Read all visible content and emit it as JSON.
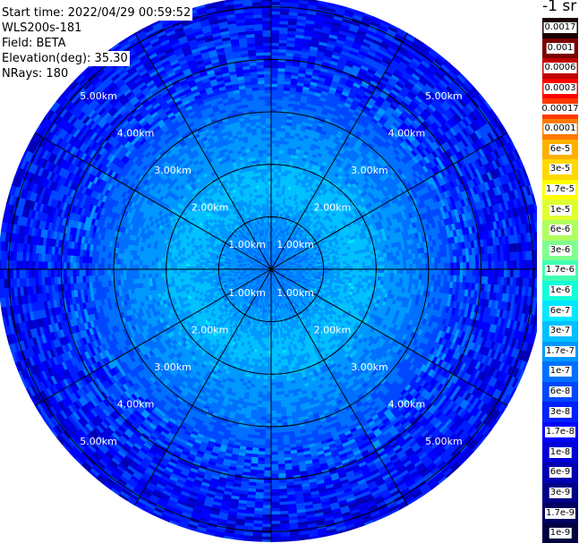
{
  "info": {
    "start_time": "Start time: 2022/04/29 00:59:52",
    "instrument": "WLS200s-181",
    "field": "Field: BETA",
    "elevation": "Elevation(deg): 35.30",
    "nrays": "NRays: 180"
  },
  "colorbar": {
    "unit_label": "-1 sr",
    "ticks": [
      "0.0017",
      "0.001",
      "0.0006",
      "0.0003",
      "0.00017",
      "0.0001",
      "6e-5",
      "3e-5",
      "1.7e-5",
      "1e-5",
      "6e-6",
      "3e-6",
      "1.7e-6",
      "1e-6",
      "6e-7",
      "3e-7",
      "1.7e-7",
      "1e-7",
      "6e-8",
      "3e-8",
      "1.7e-8",
      "1e-8",
      "6e-9",
      "3e-9",
      "1.7e-9",
      "1e-9"
    ],
    "colors": [
      "#1a0000",
      "#7a0000",
      "#c20000",
      "#ff0000",
      "#ff3a00",
      "#ff7a00",
      "#ffb000",
      "#ffd800",
      "#ffff00",
      "#e0ff30",
      "#b0ff60",
      "#80ff90",
      "#40ffb0",
      "#10ffd8",
      "#00e8ff",
      "#00c0ff",
      "#0098ff",
      "#0070ff",
      "#0048ff",
      "#0020ff",
      "#0000ff",
      "#0000d8",
      "#0000b0",
      "#000088",
      "#000060",
      "#000040"
    ]
  },
  "chart_data": {
    "type": "heatmap",
    "projection": "polar-ppi",
    "n_rays": 180,
    "range_rings_km": [
      1,
      2,
      3,
      4,
      5
    ],
    "max_range_km": 5.2,
    "ring_labels": [
      "1.00km",
      "2.00km",
      "3.00km",
      "4.00km",
      "5.00km"
    ],
    "azimuth_spokes_deg": [
      0,
      30,
      60,
      90,
      120,
      150,
      180,
      210,
      240,
      270,
      300,
      330
    ],
    "field": "BETA",
    "value_profile_by_range": [
      {
        "range_km": 0.0,
        "value": "1e-7"
      },
      {
        "range_km": 1.0,
        "value": "1.7e-7"
      },
      {
        "range_km": 1.6,
        "value": "3e-7"
      },
      {
        "range_km": 2.2,
        "value": "1.7e-7"
      },
      {
        "range_km": 3.0,
        "value": "1e-7"
      },
      {
        "range_km": 3.5,
        "value": "6e-8"
      },
      {
        "range_km": 4.2,
        "value": "3e-8"
      },
      {
        "range_km": 5.2,
        "value": "1.7e-8"
      }
    ]
  }
}
